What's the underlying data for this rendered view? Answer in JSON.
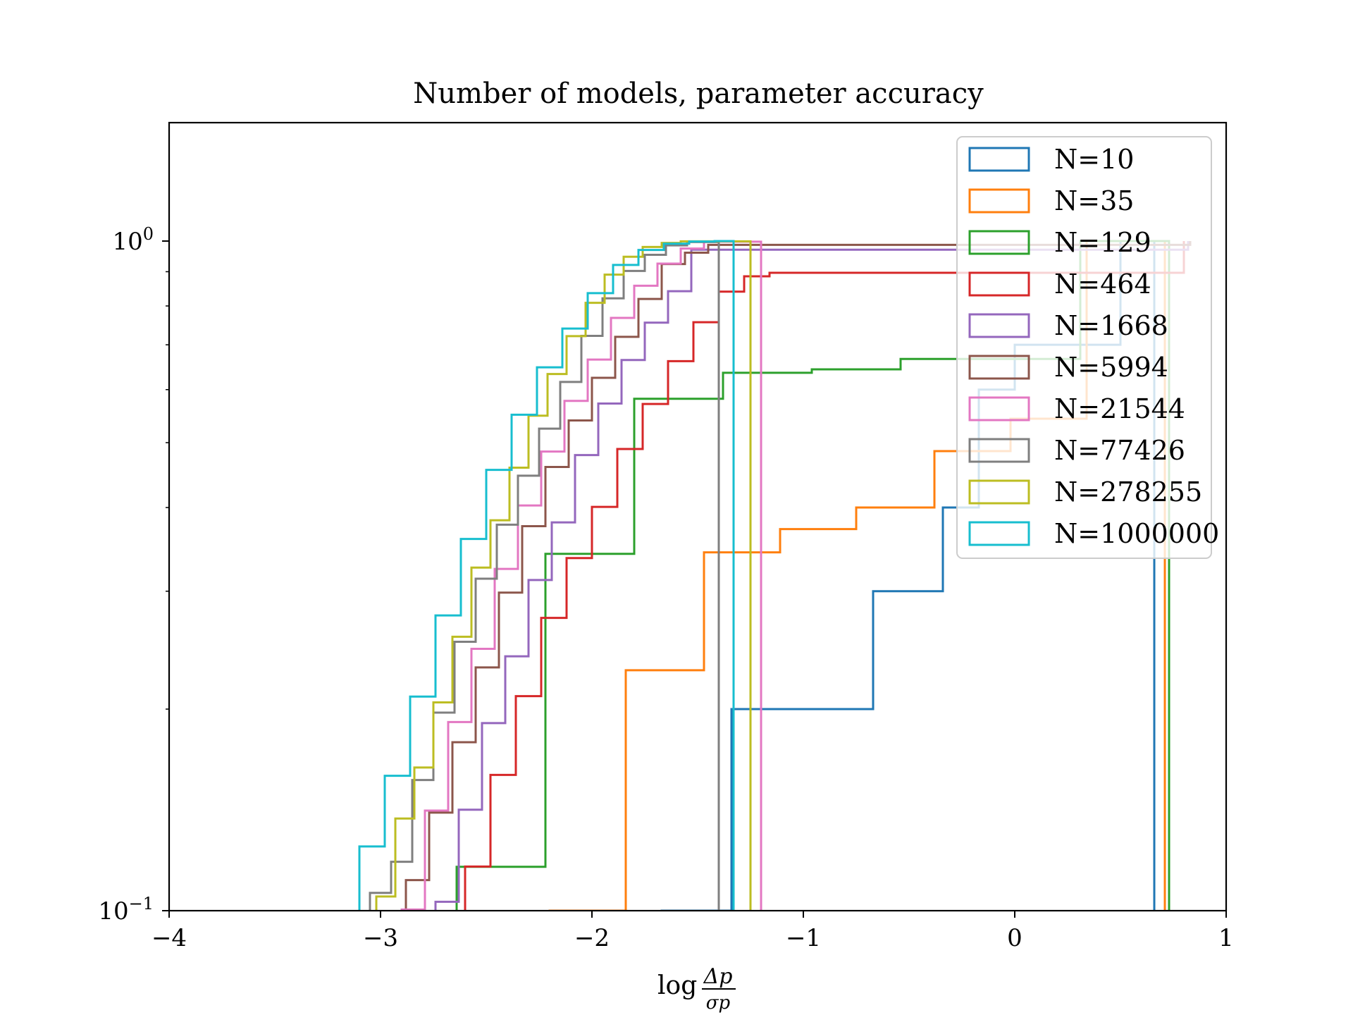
{
  "chart_data": {
    "type": "histogram-step",
    "title": "Number of models, parameter accuracy",
    "xlabel": {
      "prefix": "log",
      "numerator": "Δp",
      "denominator": "σp"
    },
    "ylabel": "",
    "xlim": [
      -4,
      1
    ],
    "ylim": [
      0.1,
      1.6
    ],
    "yscale": "log",
    "cumulative": true,
    "x_ticks": [
      {
        "value": -4,
        "label": "−4"
      },
      {
        "value": -3,
        "label": "−3"
      },
      {
        "value": -2,
        "label": "−2"
      },
      {
        "value": -1,
        "label": "−1"
      },
      {
        "value": 0,
        "label": "0"
      },
      {
        "value": 1,
        "label": "1"
      }
    ],
    "y_ticks": [
      {
        "value": 0.1,
        "base": "10",
        "exp": "−1"
      },
      {
        "value": 1,
        "base": "10",
        "exp": "0"
      }
    ],
    "legend_position": "upper right",
    "series": [
      {
        "name": "N=10",
        "color": "#1f77b4",
        "edges": [
          -1.67,
          -1.5,
          -1.34,
          -1.17,
          -1.0,
          -0.84,
          -0.67,
          -0.5,
          -0.34,
          -0.17,
          0.0,
          0.17,
          0.33,
          0.5,
          0.66
        ],
        "values": [
          0.1,
          0.1,
          0.2,
          0.2,
          0.2,
          0.2,
          0.3,
          0.3,
          0.4,
          0.6,
          0.7,
          0.7,
          0.7,
          1.0
        ]
      },
      {
        "name": "N=35",
        "color": "#ff7f0e",
        "edges": [
          -2.2,
          -1.84,
          -1.47,
          -1.11,
          -0.75,
          -0.38,
          -0.02,
          0.34,
          0.71
        ],
        "values": [
          0.1,
          0.2286,
          0.3429,
          0.3714,
          0.4,
          0.4857,
          0.5429,
          1.0
        ]
      },
      {
        "name": "N=129",
        "color": "#2ca02c",
        "edges": [
          -2.64,
          -2.22,
          -1.8,
          -1.38,
          -0.96,
          -0.54,
          -0.12,
          0.31,
          0.73
        ],
        "values": [
          0.1163,
          0.3411,
          0.5814,
          0.6357,
          0.6434,
          0.6667,
          0.6667,
          1.0
        ]
      },
      {
        "name": "N=464",
        "color": "#d62728",
        "edges": [
          -2.6,
          -2.48,
          -2.36,
          -2.24,
          -2.12,
          -2.0,
          -1.88,
          -1.76,
          -1.64,
          -1.52,
          -1.4,
          -1.28,
          -1.16,
          0.8
        ],
        "values": [
          0.1164,
          0.1595,
          0.2091,
          0.2737,
          0.3362,
          0.4009,
          0.4892,
          0.5711,
          0.6616,
          0.7565,
          0.8405,
          0.8858,
          0.8966,
          1.0
        ]
      },
      {
        "name": "N=1668",
        "color": "#9467bd",
        "edges": [
          -2.74,
          -2.63,
          -2.52,
          -2.41,
          -2.3,
          -2.19,
          -2.08,
          -1.97,
          -1.86,
          -1.75,
          -1.64,
          -1.53,
          0.82
        ],
        "values": [
          0.1031,
          0.1415,
          0.1906,
          0.2398,
          0.3118,
          0.3801,
          0.479,
          0.5719,
          0.6643,
          0.7554,
          0.8417,
          0.9706,
          1.0
        ]
      },
      {
        "name": "N=5994",
        "color": "#8c564b",
        "edges": [
          -2.88,
          -2.77,
          -2.66,
          -2.55,
          -2.44,
          -2.33,
          -2.22,
          -2.11,
          -2.0,
          -1.89,
          -1.78,
          -1.67,
          -1.56,
          -1.45,
          0.83
        ],
        "values": [
          0.1111,
          0.1401,
          0.1785,
          0.2308,
          0.2985,
          0.3751,
          0.4598,
          0.5397,
          0.6248,
          0.7193,
          0.8194,
          0.9241,
          0.9607,
          0.9872,
          1.0
        ]
      },
      {
        "name": "N=21544",
        "color": "#e377c2",
        "edges": [
          -2.9,
          -2.79,
          -2.68,
          -2.57,
          -2.46,
          -2.35,
          -2.24,
          -2.13,
          -2.02,
          -1.91,
          -1.8,
          -1.69,
          -1.58,
          -1.47,
          -1.2
        ],
        "values": [
          0.1004,
          0.1411,
          0.1913,
          0.2461,
          0.3239,
          0.4029,
          0.4849,
          0.5771,
          0.6653,
          0.7679,
          0.8576,
          0.9253,
          0.9745,
          0.998
        ]
      },
      {
        "name": "N=77426",
        "color": "#7f7f7f",
        "edges": [
          -3.05,
          -2.95,
          -2.85,
          -2.75,
          -2.65,
          -2.55,
          -2.45,
          -2.35,
          -2.25,
          -2.15,
          -2.05,
          -1.95,
          -1.85,
          -1.75,
          -1.65,
          -1.55,
          -1.4
        ],
        "values": [
          0.1063,
          0.1183,
          0.1567,
          0.1976,
          0.2521,
          0.3132,
          0.3771,
          0.4463,
          0.5247,
          0.6161,
          0.7217,
          0.8213,
          0.9024,
          0.9538,
          0.9852,
          0.9968
        ]
      },
      {
        "name": "N=278255",
        "color": "#bcbd22",
        "edges": [
          -3.02,
          -2.93,
          -2.84,
          -2.75,
          -2.66,
          -2.57,
          -2.48,
          -2.39,
          -2.3,
          -2.21,
          -2.12,
          -2.03,
          -1.94,
          -1.85,
          -1.76,
          -1.67,
          -1.58,
          -1.25
        ],
        "values": [
          0.105,
          0.1373,
          0.1636,
          0.2047,
          0.2565,
          0.3254,
          0.3828,
          0.4587,
          0.5486,
          0.6331,
          0.7211,
          0.8087,
          0.891,
          0.9475,
          0.9799,
          0.9938,
          0.999
        ]
      },
      {
        "name": "N=1000000",
        "color": "#17becf",
        "edges": [
          -3.1,
          -2.98,
          -2.86,
          -2.74,
          -2.62,
          -2.5,
          -2.38,
          -2.26,
          -2.14,
          -2.02,
          -1.9,
          -1.78,
          -1.66,
          -1.54,
          -1.42,
          -1.33
        ],
        "values": [
          0.1247,
          0.159,
          0.2088,
          0.276,
          0.359,
          0.4553,
          0.5503,
          0.6478,
          0.7403,
          0.836,
          0.9211,
          0.9699,
          0.9911,
          0.9986,
          1.0
        ]
      }
    ]
  }
}
